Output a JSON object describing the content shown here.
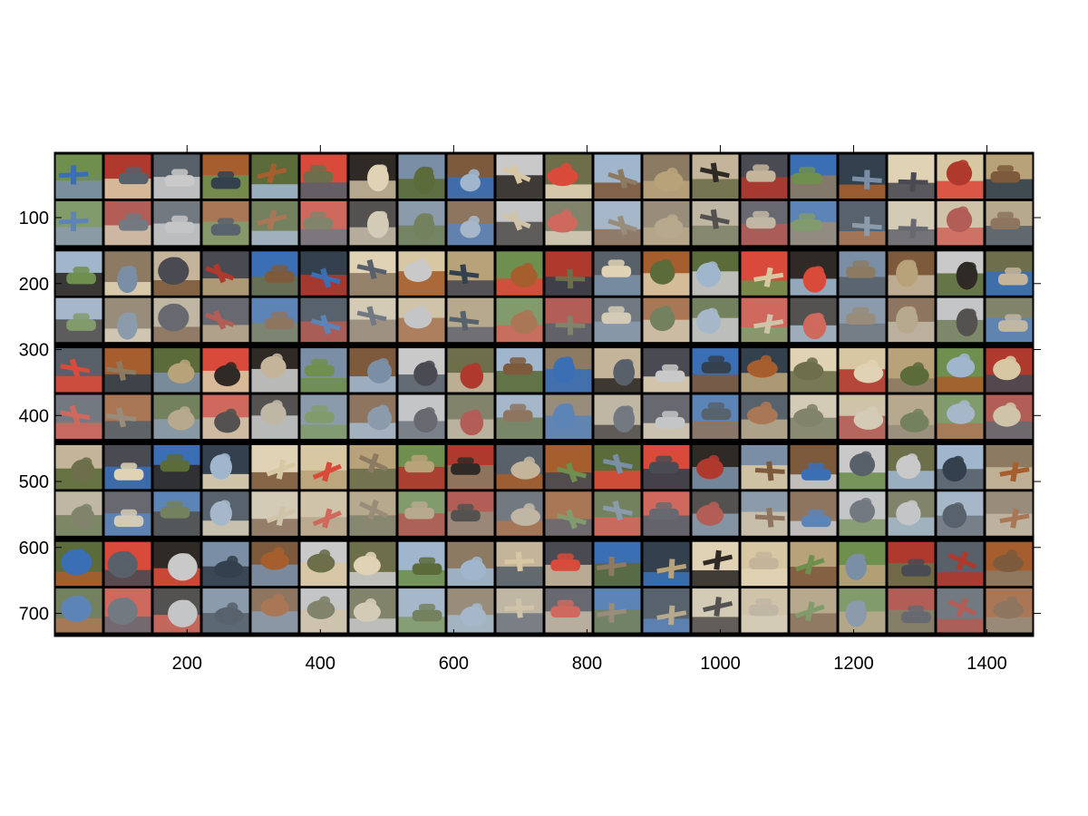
{
  "figure": {
    "axes": {
      "x_range": [
        1,
        1470
      ],
      "y_range": [
        1,
        735
      ],
      "x_ticks": [
        200,
        400,
        600,
        800,
        1000,
        1200,
        1400
      ],
      "y_ticks": [
        100,
        200,
        300,
        400,
        500,
        600,
        700
      ],
      "x_tick_labels": [
        "200",
        "400",
        "600",
        "800",
        "1000",
        "1200",
        "1400"
      ],
      "y_tick_labels": [
        "100",
        "200",
        "300",
        "400",
        "500",
        "600",
        "700"
      ]
    },
    "grid": {
      "columns": 20,
      "row_pairs": 5,
      "rows_per_pair": [
        "original",
        "reconstruction"
      ]
    },
    "colors": {
      "background": "#000000",
      "axis": "#000000",
      "palette": [
        "#7a8fa6",
        "#5b6b3a",
        "#b0392e",
        "#d8c7a3",
        "#3a6fb5",
        "#8c7a62",
        "#c9c9c9",
        "#2f2a26",
        "#a65e2e",
        "#6e8f4e",
        "#e0d2b4",
        "#4a4a52",
        "#9fb6cc",
        "#7d5a3c",
        "#d94a3a",
        "#58606a",
        "#b8a27a",
        "#33404d",
        "#c4b59a",
        "#6c6f4a"
      ]
    },
    "cells": [
      [
        "airplane",
        "car",
        "car",
        "car",
        "airplane",
        "car",
        "cat",
        "cat",
        "cat",
        "airplane",
        "cat",
        "airplane",
        "dog",
        "airplane",
        "car",
        "car",
        "airplane",
        "airplane",
        "cat",
        "car"
      ],
      [
        "car",
        "cat",
        "dog",
        "airplane",
        "car",
        "airplane",
        "airplane",
        "cat",
        "airplane",
        "dog",
        "airplane",
        "car",
        "dog",
        "cat",
        "airplane",
        "dog",
        "car",
        "dog",
        "dog",
        "car"
      ],
      [
        "airplane",
        "airplane",
        "cat",
        "dog",
        "dog",
        "car",
        "cat",
        "cat",
        "cat",
        "car",
        "dog",
        "dog",
        "car",
        "car",
        "dog",
        "cat",
        "dog",
        "dog",
        "cat",
        "cat"
      ],
      [
        "dog",
        "car",
        "car",
        "cat",
        "airplane",
        "airplane",
        "airplane",
        "car",
        "car",
        "dog",
        "airplane",
        "airplane",
        "car",
        "dog",
        "airplane",
        "car",
        "dog",
        "dog",
        "cat",
        "airplane"
      ],
      [
        "dog",
        "dog",
        "dog",
        "dog",
        "cat",
        "dog",
        "cat",
        "car",
        "cat",
        "airplane",
        "car",
        "airplane",
        "airplane",
        "airplane",
        "car",
        "airplane",
        "cat",
        "car",
        "airplane",
        "cat"
      ]
    ]
  }
}
